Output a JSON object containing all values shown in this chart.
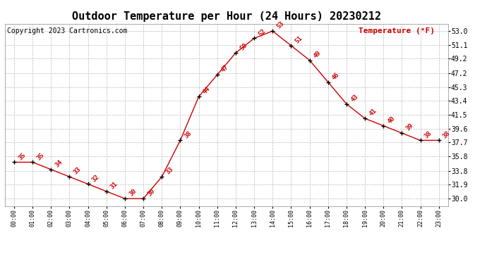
{
  "title": "Outdoor Temperature per Hour (24 Hours) 20230212",
  "copyright": "Copyright 2023 Cartronics.com",
  "legend_label": "Temperature (°F)",
  "hours": [
    "00:00",
    "01:00",
    "02:00",
    "03:00",
    "04:00",
    "05:00",
    "06:00",
    "07:00",
    "08:00",
    "09:00",
    "10:00",
    "11:00",
    "12:00",
    "13:00",
    "14:00",
    "15:00",
    "16:00",
    "17:00",
    "18:00",
    "19:00",
    "20:00",
    "21:00",
    "22:00",
    "23:00"
  ],
  "temps": [
    35,
    35,
    34,
    33,
    32,
    31,
    30,
    30,
    33,
    38,
    44,
    47,
    50,
    52,
    53,
    51,
    49,
    46,
    43,
    41,
    40,
    39,
    38,
    38
  ],
  "line_color": "#cc0000",
  "marker_color": "#000000",
  "label_color": "#cc0000",
  "grid_color": "#bbbbbb",
  "bg_color": "#ffffff",
  "ylim_min": 29.0,
  "ylim_max": 54.0,
  "yticks": [
    30.0,
    31.9,
    33.8,
    35.8,
    37.7,
    39.6,
    41.5,
    43.4,
    45.3,
    47.2,
    49.2,
    51.1,
    53.0
  ],
  "title_fontsize": 11,
  "copyright_fontsize": 7,
  "legend_fontsize": 8,
  "label_fontsize": 6.5,
  "tick_fontsize": 6,
  "ytick_fontsize": 7
}
